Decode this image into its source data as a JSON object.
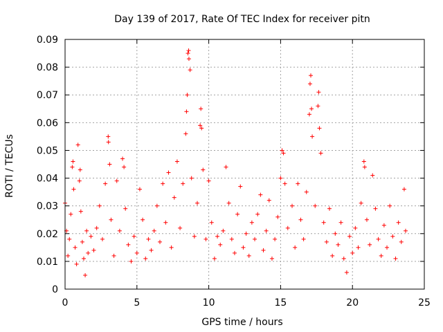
{
  "chart_data": {
    "type": "scatter",
    "title": "Day 139 of 2017, Rate Of TEC Index for receiver pitn",
    "xlabel": "GPS time / hours",
    "ylabel": "ROTI / TECUs",
    "xlim": [
      0,
      25
    ],
    "ylim": [
      0,
      0.09
    ],
    "x_ticks": [
      0,
      5,
      10,
      15,
      20,
      25
    ],
    "x_tick_labels": [
      "0",
      "5",
      "10",
      "15",
      "20",
      "25"
    ],
    "y_ticks": [
      0,
      0.01,
      0.02,
      0.03,
      0.04,
      0.05,
      0.06,
      0.07,
      0.08,
      0.09
    ],
    "y_tick_labels": [
      "0",
      "0.01",
      "0.02",
      "0.03",
      "0.04",
      "0.05",
      "0.06",
      "0.07",
      "0.08",
      "0.09"
    ],
    "grid": true,
    "marker": "+",
    "color": "#ff0000",
    "series": [
      {
        "name": "ROTI",
        "points": [
          [
            0.0,
            0.031
          ],
          [
            0.1,
            0.021
          ],
          [
            0.2,
            0.012
          ],
          [
            0.3,
            0.018
          ],
          [
            0.4,
            0.027
          ],
          [
            0.5,
            0.044
          ],
          [
            0.55,
            0.046
          ],
          [
            0.6,
            0.036
          ],
          [
            0.7,
            0.015
          ],
          [
            0.8,
            0.009
          ],
          [
            0.9,
            0.052
          ],
          [
            1.0,
            0.039
          ],
          [
            1.05,
            0.043
          ],
          [
            1.1,
            0.028
          ],
          [
            1.2,
            0.017
          ],
          [
            1.3,
            0.011
          ],
          [
            1.4,
            0.005
          ],
          [
            1.5,
            0.021
          ],
          [
            1.6,
            0.013
          ],
          [
            1.8,
            0.019
          ],
          [
            2.0,
            0.014
          ],
          [
            2.2,
            0.022
          ],
          [
            2.4,
            0.03
          ],
          [
            2.6,
            0.018
          ],
          [
            2.8,
            0.038
          ],
          [
            3.0,
            0.055
          ],
          [
            3.02,
            0.053
          ],
          [
            3.1,
            0.045
          ],
          [
            3.2,
            0.025
          ],
          [
            3.4,
            0.012
          ],
          [
            3.6,
            0.039
          ],
          [
            3.8,
            0.021
          ],
          [
            4.0,
            0.047
          ],
          [
            4.1,
            0.044
          ],
          [
            4.2,
            0.029
          ],
          [
            4.4,
            0.016
          ],
          [
            4.6,
            0.01
          ],
          [
            4.8,
            0.019
          ],
          [
            5.0,
            0.013
          ],
          [
            5.2,
            0.036
          ],
          [
            5.4,
            0.025
          ],
          [
            5.6,
            0.011
          ],
          [
            5.8,
            0.018
          ],
          [
            6.0,
            0.014
          ],
          [
            6.2,
            0.021
          ],
          [
            6.4,
            0.03
          ],
          [
            6.6,
            0.017
          ],
          [
            6.8,
            0.038
          ],
          [
            7.0,
            0.024
          ],
          [
            7.2,
            0.042
          ],
          [
            7.4,
            0.015
          ],
          [
            7.6,
            0.033
          ],
          [
            7.8,
            0.046
          ],
          [
            8.0,
            0.022
          ],
          [
            8.2,
            0.038
          ],
          [
            8.4,
            0.056
          ],
          [
            8.45,
            0.064
          ],
          [
            8.5,
            0.07
          ],
          [
            8.55,
            0.085
          ],
          [
            8.6,
            0.086
          ],
          [
            8.62,
            0.083
          ],
          [
            8.7,
            0.079
          ],
          [
            8.8,
            0.04
          ],
          [
            9.0,
            0.019
          ],
          [
            9.2,
            0.031
          ],
          [
            9.4,
            0.059
          ],
          [
            9.45,
            0.065
          ],
          [
            9.5,
            0.058
          ],
          [
            9.6,
            0.043
          ],
          [
            9.8,
            0.018
          ],
          [
            10.0,
            0.039
          ],
          [
            10.2,
            0.024
          ],
          [
            10.4,
            0.011
          ],
          [
            10.6,
            0.019
          ],
          [
            10.8,
            0.016
          ],
          [
            11.0,
            0.021
          ],
          [
            11.2,
            0.044
          ],
          [
            11.4,
            0.031
          ],
          [
            11.6,
            0.018
          ],
          [
            11.8,
            0.013
          ],
          [
            12.0,
            0.027
          ],
          [
            12.2,
            0.037
          ],
          [
            12.4,
            0.015
          ],
          [
            12.6,
            0.02
          ],
          [
            12.8,
            0.012
          ],
          [
            13.0,
            0.024
          ],
          [
            13.2,
            0.018
          ],
          [
            13.4,
            0.027
          ],
          [
            13.6,
            0.034
          ],
          [
            13.8,
            0.014
          ],
          [
            14.0,
            0.021
          ],
          [
            14.2,
            0.032
          ],
          [
            14.4,
            0.011
          ],
          [
            14.6,
            0.018
          ],
          [
            14.8,
            0.026
          ],
          [
            15.0,
            0.04
          ],
          [
            15.1,
            0.05
          ],
          [
            15.2,
            0.049
          ],
          [
            15.3,
            0.038
          ],
          [
            15.5,
            0.022
          ],
          [
            15.8,
            0.03
          ],
          [
            16.0,
            0.015
          ],
          [
            16.2,
            0.038
          ],
          [
            16.4,
            0.025
          ],
          [
            16.6,
            0.018
          ],
          [
            16.8,
            0.035
          ],
          [
            17.0,
            0.063
          ],
          [
            17.05,
            0.074
          ],
          [
            17.1,
            0.077
          ],
          [
            17.15,
            0.065
          ],
          [
            17.2,
            0.055
          ],
          [
            17.4,
            0.03
          ],
          [
            17.6,
            0.066
          ],
          [
            17.65,
            0.071
          ],
          [
            17.7,
            0.058
          ],
          [
            17.8,
            0.049
          ],
          [
            18.0,
            0.024
          ],
          [
            18.2,
            0.017
          ],
          [
            18.4,
            0.029
          ],
          [
            18.6,
            0.012
          ],
          [
            18.8,
            0.02
          ],
          [
            19.0,
            0.016
          ],
          [
            19.2,
            0.024
          ],
          [
            19.4,
            0.011
          ],
          [
            19.6,
            0.006
          ],
          [
            19.8,
            0.019
          ],
          [
            20.0,
            0.013
          ],
          [
            20.2,
            0.022
          ],
          [
            20.4,
            0.015
          ],
          [
            20.6,
            0.031
          ],
          [
            20.8,
            0.046
          ],
          [
            20.85,
            0.044
          ],
          [
            21.0,
            0.025
          ],
          [
            21.2,
            0.016
          ],
          [
            21.4,
            0.041
          ],
          [
            21.6,
            0.029
          ],
          [
            21.8,
            0.018
          ],
          [
            22.0,
            0.012
          ],
          [
            22.2,
            0.023
          ],
          [
            22.4,
            0.015
          ],
          [
            22.6,
            0.03
          ],
          [
            22.8,
            0.019
          ],
          [
            23.0,
            0.011
          ],
          [
            23.2,
            0.024
          ],
          [
            23.4,
            0.017
          ],
          [
            23.6,
            0.036
          ],
          [
            23.7,
            0.021
          ]
        ]
      }
    ]
  }
}
